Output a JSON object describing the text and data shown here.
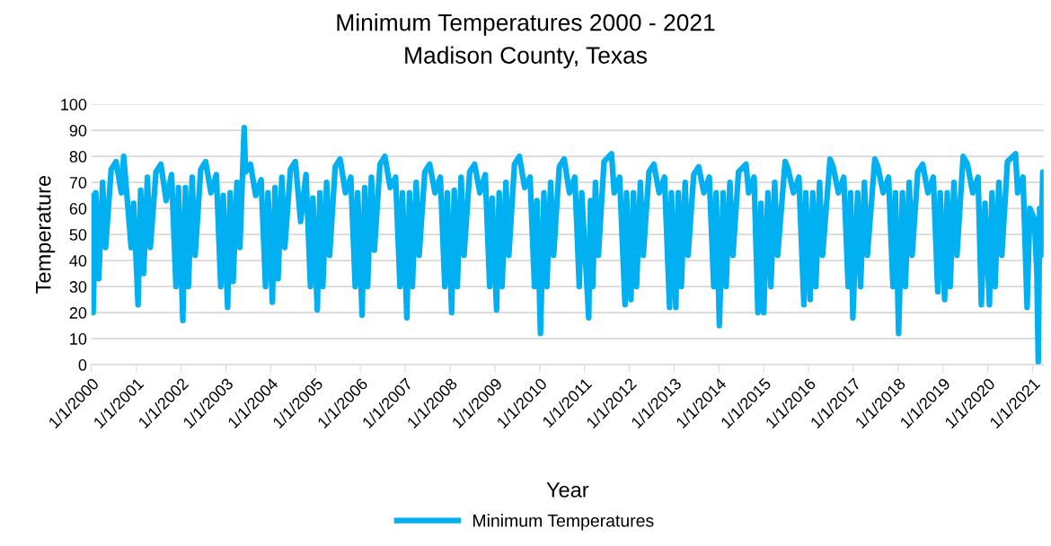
{
  "chart_data": {
    "type": "line",
    "title": "Minimum Temperatures 2000 - 2021",
    "subtitle": "Madison County, Texas",
    "xlabel": "Year",
    "ylabel": "Temperature",
    "xlim": [
      "2000-01-01",
      "2021-04-01"
    ],
    "xticks": [
      {
        "value": "2000-01-01",
        "label": "1/1/2000"
      },
      {
        "value": "2001-01-01",
        "label": "1/1/2001"
      },
      {
        "value": "2002-01-01",
        "label": "1/1/2002"
      },
      {
        "value": "2003-01-01",
        "label": "1/1/2003"
      },
      {
        "value": "2004-01-01",
        "label": "1/1/2004"
      },
      {
        "value": "2005-01-01",
        "label": "1/1/2005"
      },
      {
        "value": "2006-01-01",
        "label": "1/1/2006"
      },
      {
        "value": "2007-01-01",
        "label": "1/1/2007"
      },
      {
        "value": "2008-01-01",
        "label": "1/1/2008"
      },
      {
        "value": "2009-01-01",
        "label": "1/1/2009"
      },
      {
        "value": "2010-01-01",
        "label": "1/1/2010"
      },
      {
        "value": "2011-01-01",
        "label": "1/1/2011"
      },
      {
        "value": "2012-01-01",
        "label": "1/1/2012"
      },
      {
        "value": "2013-01-01",
        "label": "1/1/2013"
      },
      {
        "value": "2014-01-01",
        "label": "1/1/2014"
      },
      {
        "value": "2015-01-01",
        "label": "1/1/2015"
      },
      {
        "value": "2016-01-01",
        "label": "1/1/2016"
      },
      {
        "value": "2017-01-01",
        "label": "1/1/2017"
      },
      {
        "value": "2018-01-01",
        "label": "1/1/2018"
      },
      {
        "value": "2019-01-01",
        "label": "1/1/2019"
      },
      {
        "value": "2020-01-01",
        "label": "1/1/2020"
      },
      {
        "value": "2021-01-01",
        "label": "1/1/2021"
      }
    ],
    "ylim": [
      0,
      100
    ],
    "yticks": [
      0,
      10,
      20,
      30,
      40,
      50,
      60,
      70,
      80,
      90,
      100
    ],
    "grid": "y",
    "legend": "bottom",
    "marker": "none",
    "line_style": "solid",
    "series": [
      {
        "name": "Minimum Temperatures",
        "color": "#00b0f0",
        "x": [
          "2000-01-01",
          "2000-01-15",
          "2000-02-05",
          "2000-03-01",
          "2000-04-01",
          "2000-04-25",
          "2000-06-10",
          "2000-07-20",
          "2000-09-01",
          "2000-09-20",
          "2000-11-20",
          "2000-12-10",
          "2001-01-15",
          "2001-02-05",
          "2001-03-01",
          "2001-04-01",
          "2001-04-25",
          "2001-06-10",
          "2001-07-20",
          "2001-09-01",
          "2001-10-15",
          "2001-11-20",
          "2001-12-10",
          "2002-01-15",
          "2002-02-05",
          "2002-03-01",
          "2002-04-01",
          "2002-04-25",
          "2002-06-10",
          "2002-07-20",
          "2002-09-01",
          "2002-10-15",
          "2002-11-20",
          "2002-12-10",
          "2003-01-15",
          "2003-02-05",
          "2003-03-01",
          "2003-04-01",
          "2003-04-25",
          "2003-05-30",
          "2003-06-10",
          "2003-07-20",
          "2003-09-01",
          "2003-10-15",
          "2003-11-20",
          "2003-12-10",
          "2004-01-15",
          "2004-02-05",
          "2004-03-01",
          "2004-04-01",
          "2004-04-25",
          "2004-06-10",
          "2004-07-20",
          "2004-09-01",
          "2004-10-15",
          "2004-11-20",
          "2004-12-10",
          "2005-01-15",
          "2005-02-05",
          "2005-03-01",
          "2005-04-01",
          "2005-04-25",
          "2005-06-10",
          "2005-07-20",
          "2005-09-01",
          "2005-10-15",
          "2005-11-20",
          "2005-12-10",
          "2006-01-15",
          "2006-02-05",
          "2006-03-01",
          "2006-04-01",
          "2006-04-25",
          "2006-06-10",
          "2006-07-20",
          "2006-09-01",
          "2006-10-15",
          "2006-11-20",
          "2006-12-10",
          "2007-01-15",
          "2007-02-05",
          "2007-03-01",
          "2007-04-01",
          "2007-04-25",
          "2007-06-10",
          "2007-07-20",
          "2007-09-01",
          "2007-10-15",
          "2007-11-20",
          "2007-12-10",
          "2008-01-15",
          "2008-02-05",
          "2008-03-01",
          "2008-04-01",
          "2008-04-25",
          "2008-06-10",
          "2008-07-20",
          "2008-09-01",
          "2008-10-15",
          "2008-11-20",
          "2008-12-10",
          "2009-01-15",
          "2009-02-05",
          "2009-03-01",
          "2009-04-01",
          "2009-04-25",
          "2009-06-10",
          "2009-07-20",
          "2009-09-01",
          "2009-10-15",
          "2009-11-20",
          "2009-12-10",
          "2010-01-08",
          "2010-02-05",
          "2010-03-01",
          "2010-04-01",
          "2010-04-25",
          "2010-06-10",
          "2010-07-20",
          "2010-09-01",
          "2010-10-15",
          "2010-11-20",
          "2010-12-10",
          "2011-02-05",
          "2011-02-20",
          "2011-03-10",
          "2011-04-01",
          "2011-04-25",
          "2011-06-10",
          "2011-08-10",
          "2011-09-01",
          "2011-10-15",
          "2011-11-28",
          "2011-12-10",
          "2012-01-15",
          "2012-02-05",
          "2012-03-01",
          "2012-04-01",
          "2012-04-25",
          "2012-06-10",
          "2012-07-20",
          "2012-09-01",
          "2012-10-15",
          "2012-11-25",
          "2012-12-10",
          "2013-01-15",
          "2013-02-05",
          "2013-03-01",
          "2013-04-01",
          "2013-04-25",
          "2013-06-10",
          "2013-07-20",
          "2013-09-01",
          "2013-10-15",
          "2013-11-20",
          "2013-12-10",
          "2014-01-05",
          "2014-02-05",
          "2014-03-01",
          "2014-04-01",
          "2014-04-25",
          "2014-06-10",
          "2014-08-10",
          "2014-09-01",
          "2014-10-15",
          "2014-11-15",
          "2014-12-10",
          "2015-01-01",
          "2015-02-05",
          "2015-03-01",
          "2015-04-01",
          "2015-04-25",
          "2015-06-25",
          "2015-07-20",
          "2015-09-01",
          "2015-10-15",
          "2015-11-25",
          "2015-12-10",
          "2016-01-15",
          "2016-02-05",
          "2016-03-01",
          "2016-04-01",
          "2016-04-25",
          "2016-06-25",
          "2016-07-20",
          "2016-09-01",
          "2016-10-15",
          "2016-11-20",
          "2016-12-10",
          "2016-12-28",
          "2017-02-05",
          "2017-03-01",
          "2017-04-01",
          "2017-04-25",
          "2017-06-25",
          "2017-07-20",
          "2017-09-01",
          "2017-10-15",
          "2017-11-20",
          "2017-12-10",
          "2018-01-05",
          "2018-02-05",
          "2018-03-01",
          "2018-04-01",
          "2018-04-25",
          "2018-06-10",
          "2018-07-20",
          "2018-09-01",
          "2018-10-15",
          "2018-11-20",
          "2018-12-10",
          "2019-01-15",
          "2019-02-05",
          "2019-03-01",
          "2019-04-01",
          "2019-04-25",
          "2019-06-15",
          "2019-07-20",
          "2019-09-01",
          "2019-10-15",
          "2019-11-10",
          "2019-12-10",
          "2020-01-15",
          "2020-02-05",
          "2020-03-01",
          "2020-04-01",
          "2020-04-25",
          "2020-06-10",
          "2020-08-15",
          "2020-09-01",
          "2020-10-15",
          "2020-11-17",
          "2020-12-10",
          "2021-01-15",
          "2021-02-05",
          "2021-02-16",
          "2021-02-28",
          "2021-03-10",
          "2021-03-25",
          "2021-03-30"
        ],
        "values": [
          65,
          20,
          66,
          33,
          70,
          45,
          75,
          78,
          66,
          80,
          45,
          62,
          23,
          67,
          35,
          72,
          45,
          74,
          77,
          63,
          73,
          30,
          68,
          17,
          68,
          30,
          72,
          42,
          75,
          78,
          66,
          73,
          30,
          65,
          22,
          66,
          32,
          70,
          45,
          91,
          74,
          77,
          65,
          71,
          30,
          66,
          24,
          68,
          33,
          72,
          45,
          75,
          78,
          55,
          73,
          30,
          64,
          21,
          66,
          30,
          70,
          42,
          76,
          79,
          66,
          72,
          30,
          66,
          19,
          68,
          30,
          72,
          44,
          77,
          80,
          68,
          72,
          30,
          66,
          18,
          66,
          30,
          70,
          42,
          74,
          77,
          66,
          72,
          30,
          66,
          20,
          67,
          30,
          72,
          42,
          74,
          77,
          66,
          73,
          30,
          64,
          21,
          66,
          30,
          70,
          42,
          77,
          80,
          68,
          72,
          30,
          63,
          12,
          66,
          30,
          70,
          42,
          76,
          79,
          66,
          72,
          30,
          66,
          18,
          63,
          30,
          70,
          42,
          78,
          81,
          66,
          72,
          23,
          66,
          25,
          66,
          30,
          70,
          42,
          74,
          77,
          66,
          72,
          22,
          66,
          22,
          66,
          30,
          70,
          42,
          73,
          76,
          66,
          72,
          30,
          66,
          15,
          66,
          30,
          70,
          42,
          74,
          77,
          66,
          72,
          20,
          62,
          20,
          66,
          30,
          70,
          42,
          78,
          75,
          66,
          72,
          23,
          66,
          25,
          66,
          30,
          70,
          42,
          79,
          76,
          66,
          72,
          30,
          66,
          18,
          66,
          30,
          70,
          42,
          79,
          76,
          66,
          72,
          30,
          66,
          12,
          66,
          30,
          70,
          42,
          74,
          77,
          66,
          72,
          28,
          66,
          25,
          66,
          30,
          70,
          42,
          80,
          77,
          66,
          72,
          23,
          62,
          23,
          66,
          30,
          70,
          42,
          78,
          81,
          66,
          72,
          22,
          60,
          56,
          35,
          1,
          60,
          42,
          74,
          70
        ]
      }
    ]
  }
}
